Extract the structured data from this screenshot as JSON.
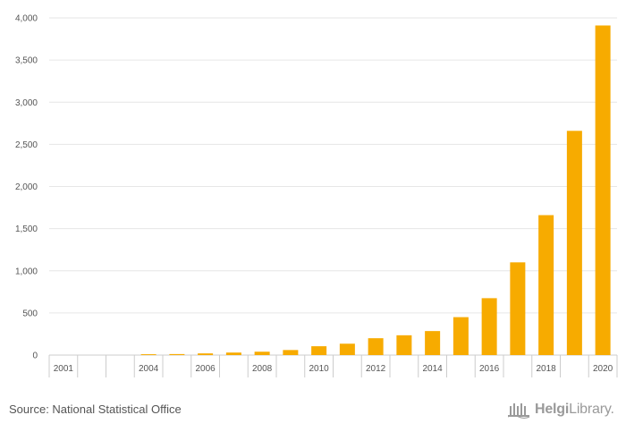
{
  "chart_data": {
    "type": "bar",
    "categories": [
      "2001",
      "2002",
      "2003",
      "2004",
      "2005",
      "2006",
      "2007",
      "2008",
      "2009",
      "2010",
      "2011",
      "2012",
      "2013",
      "2014",
      "2015",
      "2016",
      "2017",
      "2018",
      "2019",
      "2020"
    ],
    "values": [
      0,
      0,
      0,
      10,
      12,
      20,
      30,
      40,
      60,
      105,
      135,
      200,
      235,
      285,
      450,
      675,
      1100,
      1660,
      2660,
      3910
    ],
    "x_tick_labels": [
      "2001",
      "",
      "",
      "2004",
      "",
      "2006",
      "",
      "2008",
      "",
      "2010",
      "",
      "2012",
      "",
      "2014",
      "",
      "2016",
      "",
      "2018",
      "",
      "2020"
    ],
    "yticks": [
      "0",
      "500",
      "1,000",
      "1,500",
      "2,000",
      "2,500",
      "3,000",
      "3,500",
      "4,000"
    ],
    "ylim": [
      0,
      4000
    ],
    "title": "",
    "xlabel": "",
    "ylabel": "",
    "grid": true,
    "bar_color": "#f7ab00"
  },
  "footer": {
    "source": "Source: National Statistical Office",
    "logo_bold": "Helgi",
    "logo_rest": "Library."
  }
}
